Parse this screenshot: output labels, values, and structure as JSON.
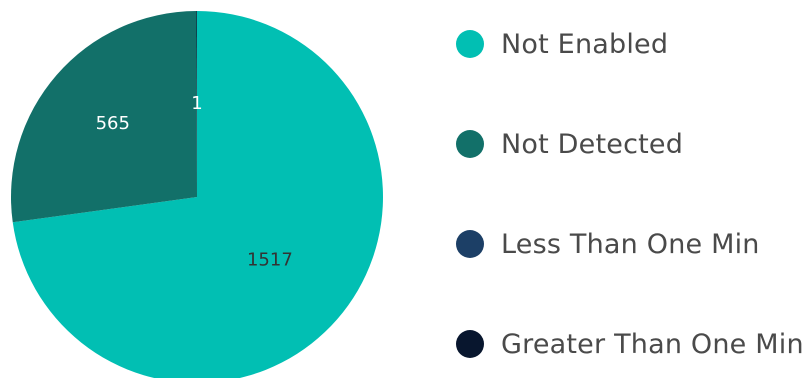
{
  "chart_data": {
    "type": "pie",
    "categories": [
      "Not Enabled",
      "Not Detected",
      "Less Than One Min",
      "Greater Than One Min"
    ],
    "values": [
      1517,
      565,
      0,
      1
    ],
    "data_labels": [
      "1517",
      "565",
      "",
      "1"
    ],
    "colors": [
      "#01bfb3",
      "#127069",
      "#1c3f66",
      "#08162e"
    ],
    "label_colors": [
      "#333333",
      "#ffffff",
      "#ffffff",
      "#ffffff"
    ],
    "legend": "right"
  }
}
